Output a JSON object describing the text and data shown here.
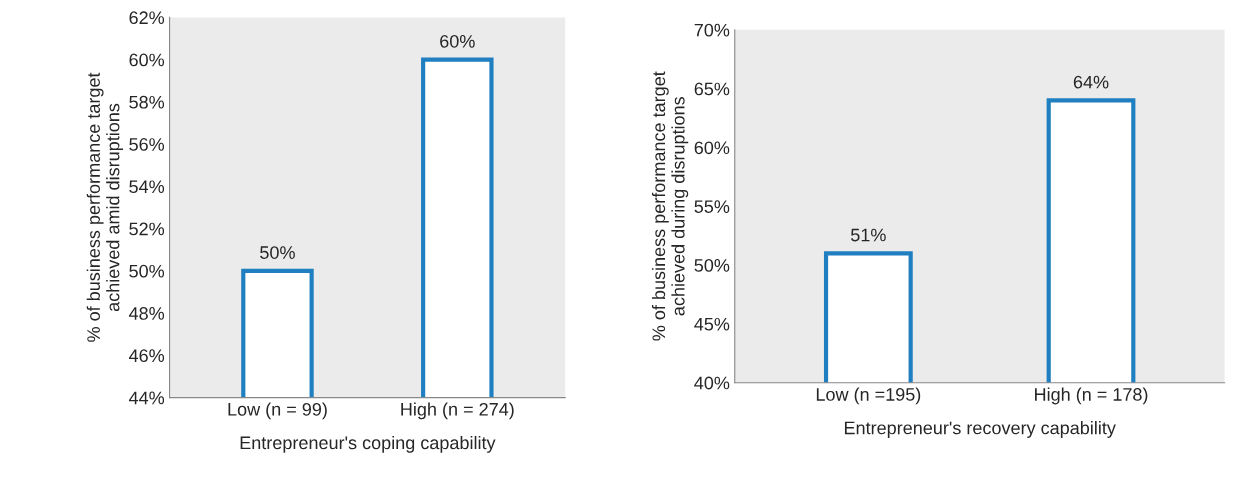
{
  "chart_data": [
    {
      "type": "bar",
      "xlabel": "Entrepreneur's coping capability",
      "ylabel": "% of business performance target\nachieved amid disruptions",
      "categories": [
        "Low (n = 99)",
        "High (n = 274)"
      ],
      "values": [
        50,
        60
      ],
      "value_labels": [
        "50%",
        "60%"
      ],
      "color": "#1f7fc0",
      "ylim": [
        44,
        62
      ],
      "yticks": [
        {
          "value": 44,
          "label": "44%"
        },
        {
          "value": 46,
          "label": "46%"
        },
        {
          "value": 48,
          "label": "48%"
        },
        {
          "value": 50,
          "label": "50%"
        },
        {
          "value": 52,
          "label": "52%"
        },
        {
          "value": 54,
          "label": "54%"
        },
        {
          "value": 56,
          "label": "56%"
        },
        {
          "value": 58,
          "label": "58%"
        },
        {
          "value": 60,
          "label": "60%"
        },
        {
          "value": 62,
          "label": "62%"
        }
      ]
    },
    {
      "type": "bar",
      "xlabel": "Entrepreneur's recovery capability",
      "ylabel": "% of business performance target\nachieved during disruptions",
      "categories": [
        "Low (n =195)",
        "High (n = 178)"
      ],
      "values": [
        51,
        64
      ],
      "value_labels": [
        "51%",
        "64%"
      ],
      "color": "#1f7fc0",
      "ylim": [
        40,
        70
      ],
      "yticks": [
        {
          "value": 40,
          "label": "40%"
        },
        {
          "value": 45,
          "label": "45%"
        },
        {
          "value": 50,
          "label": "50%"
        },
        {
          "value": 55,
          "label": "55%"
        },
        {
          "value": 60,
          "label": "60%"
        },
        {
          "value": 65,
          "label": "65%"
        },
        {
          "value": 70,
          "label": "70%"
        }
      ]
    }
  ]
}
